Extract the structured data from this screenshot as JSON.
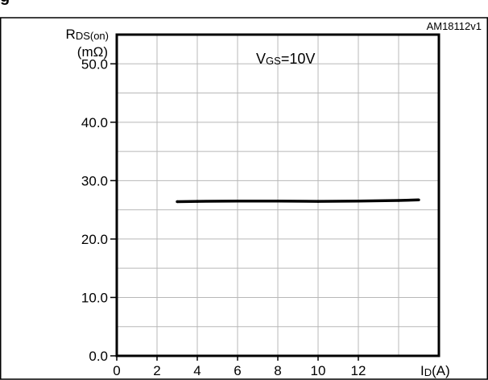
{
  "header": {
    "heading_fragment": "g"
  },
  "chart_data": {
    "type": "line",
    "figure_id": "AM18112v1",
    "condition": {
      "main": "V",
      "sub": "GS",
      "rest": "=10V"
    },
    "ylabel": {
      "main": "R",
      "sub": "DS(on)",
      "unit": "(mΩ)"
    },
    "xlabel": {
      "main": "I",
      "sub": "D",
      "unit": "(A)"
    },
    "xlim": [
      0,
      16
    ],
    "ylim": [
      0,
      55
    ],
    "x_ticks": [
      0,
      2,
      4,
      6,
      8,
      10,
      12
    ],
    "x_tick_labels": [
      "0",
      "2",
      "4",
      "6",
      "8",
      "10",
      "12"
    ],
    "y_ticks": [
      0,
      10,
      20,
      30,
      40,
      50
    ],
    "y_tick_labels": [
      "0.0",
      "10.0",
      "20.0",
      "30.0",
      "40.0",
      "50.0"
    ],
    "grid": true,
    "series": [
      {
        "color": "#000000",
        "x": [
          3,
          4,
          6,
          8,
          10,
          12,
          14,
          15
        ],
        "y": [
          26.4,
          26.45,
          26.5,
          26.5,
          26.45,
          26.5,
          26.6,
          26.7
        ]
      }
    ]
  }
}
